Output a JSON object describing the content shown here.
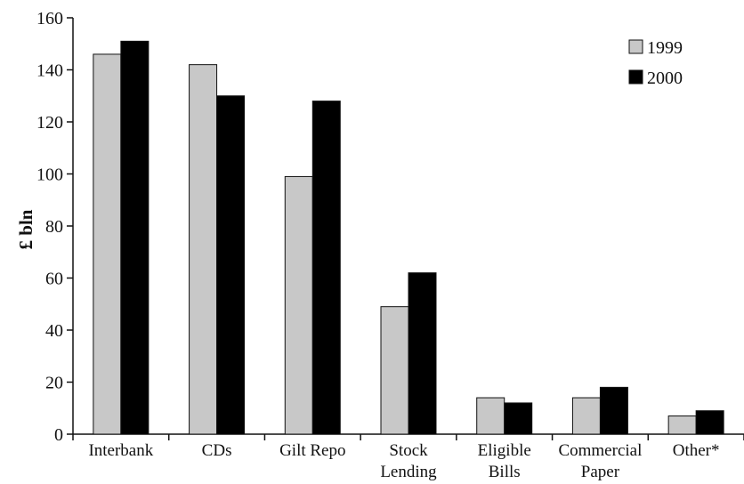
{
  "chart_data": {
    "type": "bar",
    "title": "",
    "xlabel": "",
    "ylabel": "£ bln",
    "ylim": [
      0,
      160
    ],
    "yticks": [
      0,
      20,
      40,
      60,
      80,
      100,
      120,
      140,
      160
    ],
    "grid": false,
    "legend_position": "top-right",
    "categories": [
      [
        "Interbank"
      ],
      [
        "CDs"
      ],
      [
        "Gilt Repo"
      ],
      [
        "Stock",
        "Lending"
      ],
      [
        "Eligible",
        "Bills"
      ],
      [
        "Commercial",
        "Paper"
      ],
      [
        "Other*"
      ]
    ],
    "series": [
      {
        "name": "1999",
        "color": "#c8c8c8",
        "values": [
          146,
          142,
          99,
          49,
          14,
          14,
          7
        ]
      },
      {
        "name": "2000",
        "color": "#000000",
        "values": [
          151,
          130,
          128,
          62,
          12,
          18,
          9
        ]
      }
    ]
  }
}
